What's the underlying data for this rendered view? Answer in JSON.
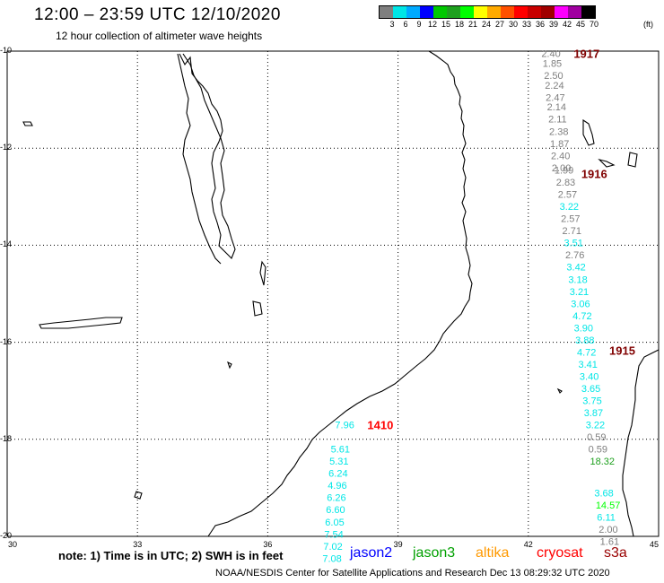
{
  "title": "12:00 – 23:59 UTC 12/10/2020",
  "subtitle": "12 hour collection of altimeter wave heights",
  "scale": {
    "colors": [
      "#7f7f7f",
      "#00e6e6",
      "#00aaff",
      "#0000ff",
      "#00c800",
      "#1ea01e",
      "#00ff00",
      "#ffff00",
      "#ffaa00",
      "#ff5000",
      "#ff0000",
      "#c80000",
      "#a00000",
      "#ff00ff",
      "#a000a0",
      "#000000"
    ],
    "labels": [
      "3",
      "6",
      "9",
      "12",
      "15",
      "18",
      "21",
      "24",
      "27",
      "30",
      "33",
      "36",
      "39",
      "42",
      "45",
      "70"
    ],
    "unit": "(ft)"
  },
  "axes": {
    "lon_labels": [
      "30",
      "33",
      "36",
      "39",
      "42",
      "45"
    ],
    "lat_labels": [
      "-10",
      "-12",
      "-14",
      "-16",
      "-18",
      "-20"
    ]
  },
  "passes": [
    {
      "name": "pass-1917",
      "label": "1917",
      "color": "#800000",
      "points": [
        {
          "lon": 42.3,
          "lat": -10.05,
          "v": "2.40",
          "c": "#7f7f7f"
        },
        {
          "lon": 42.33,
          "lat": -10.25,
          "v": "1.85",
          "c": "#7f7f7f"
        },
        {
          "lon": 42.36,
          "lat": -10.5,
          "v": "2.50",
          "c": "#7f7f7f"
        },
        {
          "lon": 42.38,
          "lat": -10.7,
          "v": "2.24",
          "c": "#7f7f7f"
        },
        {
          "lon": 42.4,
          "lat": -10.95,
          "v": "2.47",
          "c": "#7f7f7f"
        },
        {
          "lon": 42.43,
          "lat": -11.15,
          "v": "2.14",
          "c": "#7f7f7f"
        },
        {
          "lon": 42.46,
          "lat": -11.4,
          "v": "2.11",
          "c": "#7f7f7f"
        },
        {
          "lon": 42.48,
          "lat": -11.65,
          "v": "2.38",
          "c": "#7f7f7f"
        },
        {
          "lon": 42.5,
          "lat": -11.9,
          "v": "1.87",
          "c": "#7f7f7f"
        },
        {
          "lon": 42.52,
          "lat": -12.15,
          "v": "2.40",
          "c": "#7f7f7f"
        },
        {
          "lon": 42.54,
          "lat": -12.4,
          "v": "2.00",
          "c": "#7f7f7f"
        }
      ]
    },
    {
      "name": "pass-1916",
      "label": "1916",
      "color": "#800000",
      "points": [
        {
          "lon": 42.6,
          "lat": -12.45,
          "v": "1.99",
          "c": "#7f7f7f"
        },
        {
          "lon": 42.64,
          "lat": -12.7,
          "v": "2.83",
          "c": "#7f7f7f"
        },
        {
          "lon": 42.68,
          "lat": -12.95,
          "v": "2.57",
          "c": "#7f7f7f"
        },
        {
          "lon": 42.72,
          "lat": -13.2,
          "v": "3.22",
          "c": "#00e6e6"
        },
        {
          "lon": 42.75,
          "lat": -13.45,
          "v": "2.57",
          "c": "#7f7f7f"
        },
        {
          "lon": 42.78,
          "lat": -13.7,
          "v": "2.71",
          "c": "#7f7f7f"
        },
        {
          "lon": 42.82,
          "lat": -13.95,
          "v": "3.51",
          "c": "#00e6e6"
        },
        {
          "lon": 42.85,
          "lat": -14.2,
          "v": "2.76",
          "c": "#7f7f7f"
        },
        {
          "lon": 42.88,
          "lat": -14.45,
          "v": "3.42",
          "c": "#00e6e6"
        },
        {
          "lon": 42.92,
          "lat": -14.7,
          "v": "3.18",
          "c": "#00e6e6"
        },
        {
          "lon": 42.95,
          "lat": -14.95,
          "v": "3.21",
          "c": "#00e6e6"
        },
        {
          "lon": 42.98,
          "lat": -15.2,
          "v": "3.06",
          "c": "#00e6e6"
        },
        {
          "lon": 43.02,
          "lat": -15.45,
          "v": "4.72",
          "c": "#00e6e6"
        },
        {
          "lon": 43.05,
          "lat": -15.7,
          "v": "3.90",
          "c": "#00e6e6"
        },
        {
          "lon": 43.08,
          "lat": -15.95,
          "v": "3.88",
          "c": "#00e6e6"
        }
      ]
    },
    {
      "name": "pass-1915",
      "label": "1915",
      "color": "#800000",
      "points": [
        {
          "lon": 43.12,
          "lat": -16.2,
          "v": "4.72",
          "c": "#00e6e6"
        },
        {
          "lon": 43.15,
          "lat": -16.45,
          "v": "3.41",
          "c": "#00e6e6"
        },
        {
          "lon": 43.18,
          "lat": -16.7,
          "v": "3.40",
          "c": "#00e6e6"
        },
        {
          "lon": 43.22,
          "lat": -16.95,
          "v": "3.65",
          "c": "#00e6e6"
        },
        {
          "lon": 43.25,
          "lat": -17.2,
          "v": "3.75",
          "c": "#00e6e6"
        },
        {
          "lon": 43.28,
          "lat": -17.45,
          "v": "3.87",
          "c": "#00e6e6"
        },
        {
          "lon": 43.32,
          "lat": -17.7,
          "v": "3.22",
          "c": "#00e6e6"
        },
        {
          "lon": 43.35,
          "lat": -17.95,
          "v": "0.59",
          "c": "#7f7f7f"
        },
        {
          "lon": 43.38,
          "lat": -18.2,
          "v": "0.59",
          "c": "#7f7f7f"
        },
        {
          "lon": 43.42,
          "lat": -18.45,
          "v": "18.32",
          "c": "#1ea01e"
        },
        {
          "lon": 43.52,
          "lat": -19.1,
          "v": "3.68",
          "c": "#00e6e6"
        },
        {
          "lon": 43.55,
          "lat": -19.35,
          "v": "14.57",
          "c": "#00ff00"
        },
        {
          "lon": 43.58,
          "lat": -19.6,
          "v": "6.11",
          "c": "#00e6e6"
        },
        {
          "lon": 43.62,
          "lat": -19.85,
          "v": "2.00",
          "c": "#7f7f7f"
        },
        {
          "lon": 43.65,
          "lat": -20.1,
          "v": "1.61",
          "c": "#7f7f7f"
        }
      ]
    },
    {
      "name": "pass-1410",
      "label": "1410",
      "color": "#ff0000",
      "points": [
        {
          "lon": 37.55,
          "lat": -17.7,
          "v": "7.96",
          "c": "#00e6e6"
        },
        {
          "lon": 37.45,
          "lat": -18.2,
          "v": "5.61",
          "c": "#00e6e6"
        },
        {
          "lon": 37.42,
          "lat": -18.45,
          "v": "5.31",
          "c": "#00e6e6"
        },
        {
          "lon": 37.4,
          "lat": -18.7,
          "v": "6.24",
          "c": "#00e6e6"
        },
        {
          "lon": 37.38,
          "lat": -18.95,
          "v": "4.96",
          "c": "#00e6e6"
        },
        {
          "lon": 37.36,
          "lat": -19.2,
          "v": "6.26",
          "c": "#00e6e6"
        },
        {
          "lon": 37.34,
          "lat": -19.45,
          "v": "6.60",
          "c": "#00e6e6"
        },
        {
          "lon": 37.32,
          "lat": -19.7,
          "v": "6.05",
          "c": "#00e6e6"
        },
        {
          "lon": 37.3,
          "lat": -19.95,
          "v": "7.54",
          "c": "#00e6e6"
        },
        {
          "lon": 37.28,
          "lat": -20.2,
          "v": "7.02",
          "c": "#00e6e6"
        },
        {
          "lon": 37.26,
          "lat": -20.45,
          "v": "7.08",
          "c": "#00e6e6"
        }
      ]
    }
  ],
  "note": "note:  1) Time is in UTC; 2) SWH is in feet",
  "satellites": [
    {
      "label": "jason2",
      "color": "#0000ff"
    },
    {
      "label": "jason3",
      "color": "#00a000"
    },
    {
      "label": "altika",
      "color": "#ff9900"
    },
    {
      "label": "cryosat",
      "color": "#ff0000"
    },
    {
      "label": "s3a",
      "color": "#990000"
    }
  ],
  "footer": "NOAA/NESDIS Center for Satellite Applications and Research     Dec 13 08:29:32 UTC 2020"
}
